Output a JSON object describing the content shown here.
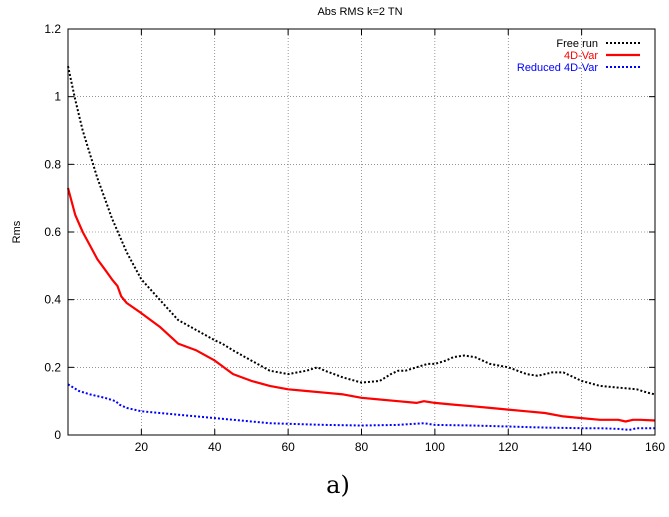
{
  "chart_data": {
    "type": "line",
    "title": "Abs RMS k=2 TN",
    "xlabel": "",
    "ylabel": "Rms",
    "caption": "a)",
    "xlim": [
      0,
      160
    ],
    "ylim": [
      0,
      1.2
    ],
    "xticks": [
      20,
      40,
      60,
      80,
      100,
      120,
      140,
      160
    ],
    "yticks": [
      0,
      0.2,
      0.4,
      0.6,
      0.8,
      1,
      1.2
    ],
    "xtick_labels": [
      "20",
      "40",
      "60",
      "80",
      "100",
      "120",
      "140",
      "160"
    ],
    "ytick_labels": [
      "0",
      "0.2",
      "0.4",
      "0.6",
      "0.8",
      "1",
      "1.2"
    ],
    "grid": true,
    "legend_position": "top-right",
    "series": [
      {
        "name": "Free run",
        "color": "#000000",
        "style": "dotted",
        "x": [
          0,
          2,
          4,
          6,
          8,
          10,
          12,
          14,
          16,
          18,
          20,
          25,
          30,
          35,
          40,
          42,
          45,
          50,
          55,
          60,
          65,
          68,
          70,
          75,
          80,
          85,
          88,
          90,
          92,
          95,
          98,
          100,
          103,
          105,
          108,
          111,
          115,
          120,
          125,
          128,
          132,
          135,
          138,
          140,
          145,
          150,
          155,
          158,
          160
        ],
        "y": [
          1.09,
          0.99,
          0.9,
          0.83,
          0.76,
          0.7,
          0.64,
          0.59,
          0.54,
          0.5,
          0.46,
          0.4,
          0.34,
          0.31,
          0.28,
          0.27,
          0.25,
          0.22,
          0.19,
          0.18,
          0.19,
          0.2,
          0.19,
          0.17,
          0.155,
          0.16,
          0.18,
          0.19,
          0.19,
          0.2,
          0.21,
          0.21,
          0.22,
          0.23,
          0.235,
          0.23,
          0.21,
          0.2,
          0.18,
          0.175,
          0.185,
          0.185,
          0.17,
          0.16,
          0.145,
          0.14,
          0.135,
          0.125,
          0.12
        ]
      },
      {
        "name": "4D-Var",
        "color": "#ff0000",
        "style": "solid",
        "x": [
          0,
          2,
          4,
          6,
          8,
          10,
          12,
          13.5,
          14.5,
          16,
          20,
          25,
          30,
          35,
          40,
          45,
          50,
          55,
          60,
          65,
          70,
          75,
          80,
          85,
          90,
          95,
          97,
          100,
          105,
          110,
          115,
          120,
          125,
          130,
          135,
          140,
          145,
          150,
          152,
          154,
          156,
          160
        ],
        "y": [
          0.73,
          0.65,
          0.6,
          0.56,
          0.52,
          0.49,
          0.46,
          0.44,
          0.41,
          0.39,
          0.36,
          0.32,
          0.27,
          0.25,
          0.22,
          0.18,
          0.16,
          0.145,
          0.135,
          0.13,
          0.125,
          0.12,
          0.11,
          0.105,
          0.1,
          0.095,
          0.1,
          0.095,
          0.09,
          0.085,
          0.08,
          0.075,
          0.07,
          0.065,
          0.055,
          0.05,
          0.045,
          0.045,
          0.04,
          0.045,
          0.045,
          0.043
        ]
      },
      {
        "name": "Reduced 4D-Var",
        "color": "#0000ff",
        "style": "dotted",
        "x": [
          0,
          3,
          6,
          10,
          13,
          14,
          16,
          20,
          25,
          30,
          35,
          40,
          45,
          50,
          55,
          60,
          70,
          80,
          90,
          97,
          100,
          110,
          120,
          130,
          140,
          145,
          150,
          153,
          155,
          160
        ],
        "y": [
          0.15,
          0.13,
          0.12,
          0.11,
          0.1,
          0.09,
          0.08,
          0.07,
          0.065,
          0.06,
          0.055,
          0.05,
          0.045,
          0.04,
          0.035,
          0.033,
          0.03,
          0.028,
          0.03,
          0.035,
          0.03,
          0.028,
          0.025,
          0.022,
          0.02,
          0.02,
          0.018,
          0.015,
          0.02,
          0.02
        ]
      }
    ]
  }
}
